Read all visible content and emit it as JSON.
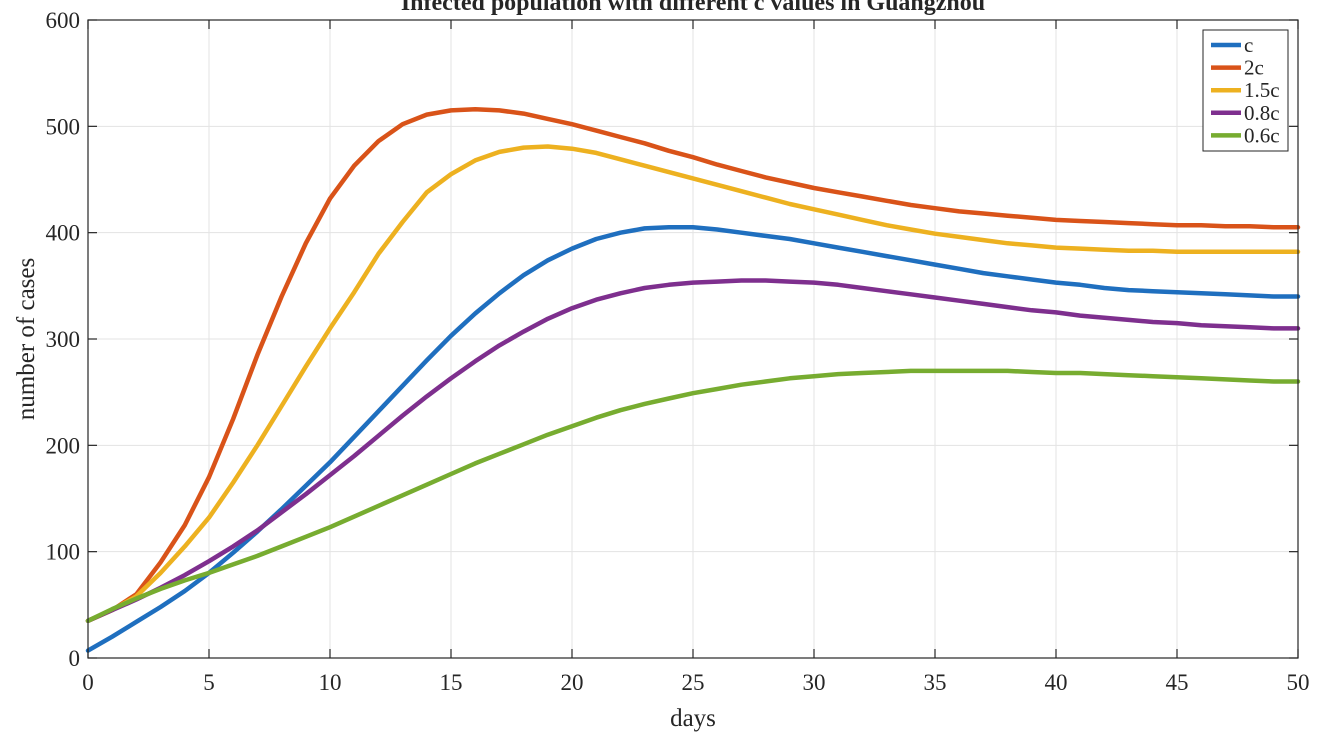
{
  "chart_data": {
    "type": "line",
    "title": "Infected population with different c values in Guangzhou",
    "xlabel": "days",
    "ylabel": "number of cases",
    "xlim": [
      0,
      50
    ],
    "ylim": [
      0,
      600
    ],
    "xticks": [
      0,
      5,
      10,
      15,
      20,
      25,
      30,
      35,
      40,
      45,
      50
    ],
    "yticks": [
      0,
      100,
      200,
      300,
      400,
      500,
      600
    ],
    "grid": true,
    "legend_position": "top-right",
    "x": [
      0,
      1,
      2,
      3,
      4,
      5,
      6,
      7,
      8,
      9,
      10,
      11,
      12,
      13,
      14,
      15,
      16,
      17,
      18,
      19,
      20,
      21,
      22,
      23,
      24,
      25,
      26,
      27,
      28,
      29,
      30,
      31,
      32,
      33,
      34,
      35,
      36,
      37,
      38,
      39,
      40,
      41,
      42,
      43,
      44,
      45,
      46,
      47,
      48,
      49,
      50
    ],
    "series": [
      {
        "name": "c",
        "color": "#1f6fbf",
        "values": [
          7,
          20,
          34,
          48,
          63,
          80,
          99,
          119,
          140,
          162,
          184,
          208,
          232,
          256,
          280,
          303,
          324,
          343,
          360,
          374,
          385,
          394,
          400,
          404,
          405,
          405,
          403,
          400,
          397,
          394,
          390,
          386,
          382,
          378,
          374,
          370,
          366,
          362,
          359,
          356,
          353,
          351,
          348,
          346,
          345,
          344,
          343,
          342,
          341,
          340,
          340
        ]
      },
      {
        "name": "2c",
        "color": "#d95319",
        "values": [
          35,
          45,
          60,
          90,
          125,
          170,
          225,
          285,
          340,
          390,
          432,
          463,
          486,
          502,
          511,
          515,
          516,
          515,
          512,
          507,
          502,
          496,
          490,
          484,
          477,
          471,
          464,
          458,
          452,
          447,
          442,
          438,
          434,
          430,
          426,
          423,
          420,
          418,
          416,
          414,
          412,
          411,
          410,
          409,
          408,
          407,
          407,
          406,
          406,
          405,
          405
        ]
      },
      {
        "name": "1.5c",
        "color": "#edb120",
        "values": [
          35,
          45,
          58,
          80,
          105,
          132,
          165,
          200,
          237,
          274,
          310,
          344,
          380,
          410,
          438,
          455,
          468,
          476,
          480,
          481,
          479,
          475,
          469,
          463,
          457,
          451,
          445,
          439,
          433,
          427,
          422,
          417,
          412,
          407,
          403,
          399,
          396,
          393,
          390,
          388,
          386,
          385,
          384,
          383,
          383,
          382,
          382,
          382,
          382,
          382,
          382
        ]
      },
      {
        "name": "0.8c",
        "color": "#7e2f8e",
        "values": [
          35,
          45,
          55,
          66,
          78,
          91,
          105,
          120,
          137,
          154,
          172,
          190,
          209,
          228,
          246,
          263,
          279,
          294,
          307,
          319,
          329,
          337,
          343,
          348,
          351,
          353,
          354,
          355,
          355,
          354,
          353,
          351,
          348,
          345,
          342,
          339,
          336,
          333,
          330,
          327,
          325,
          322,
          320,
          318,
          316,
          315,
          313,
          312,
          311,
          310,
          310
        ]
      },
      {
        "name": "0.6c",
        "color": "#77ac30",
        "values": [
          35,
          46,
          56,
          65,
          73,
          80,
          88,
          96,
          105,
          114,
          123,
          133,
          143,
          153,
          163,
          173,
          183,
          192,
          201,
          210,
          218,
          226,
          233,
          239,
          244,
          249,
          253,
          257,
          260,
          263,
          265,
          267,
          268,
          269,
          270,
          270,
          270,
          270,
          270,
          269,
          268,
          268,
          267,
          266,
          265,
          264,
          263,
          262,
          261,
          260,
          260
        ]
      }
    ]
  }
}
